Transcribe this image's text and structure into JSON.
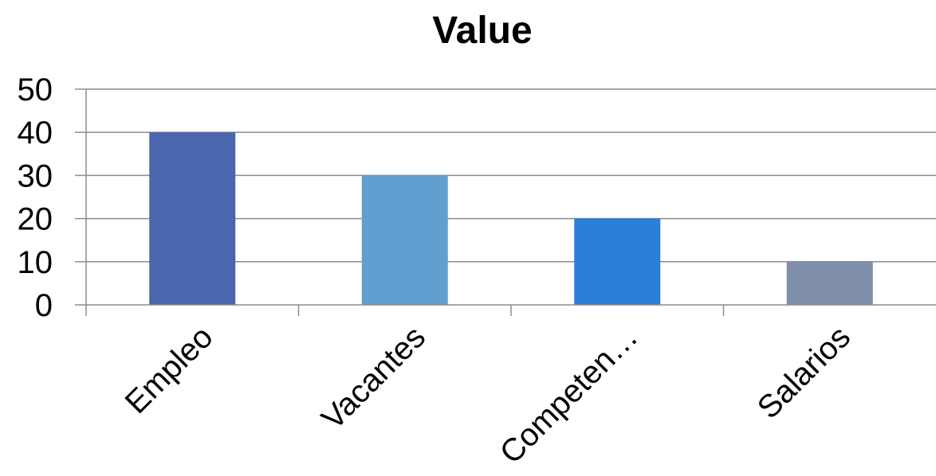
{
  "chart_data": {
    "type": "bar",
    "title": "Value",
    "categories": [
      "Empleo",
      "Vacantes",
      "Competen…",
      "Salarios"
    ],
    "values": [
      40,
      30,
      20,
      10
    ],
    "colors": [
      "#4a66ac",
      "#629fd1",
      "#2a7fd8",
      "#7f8fa9"
    ],
    "xlabel": "",
    "ylabel": "",
    "ylim": [
      0,
      50
    ],
    "yticks": [
      "0",
      "10",
      "20",
      "30",
      "40",
      "50"
    ],
    "grid": true,
    "legend": "none"
  }
}
